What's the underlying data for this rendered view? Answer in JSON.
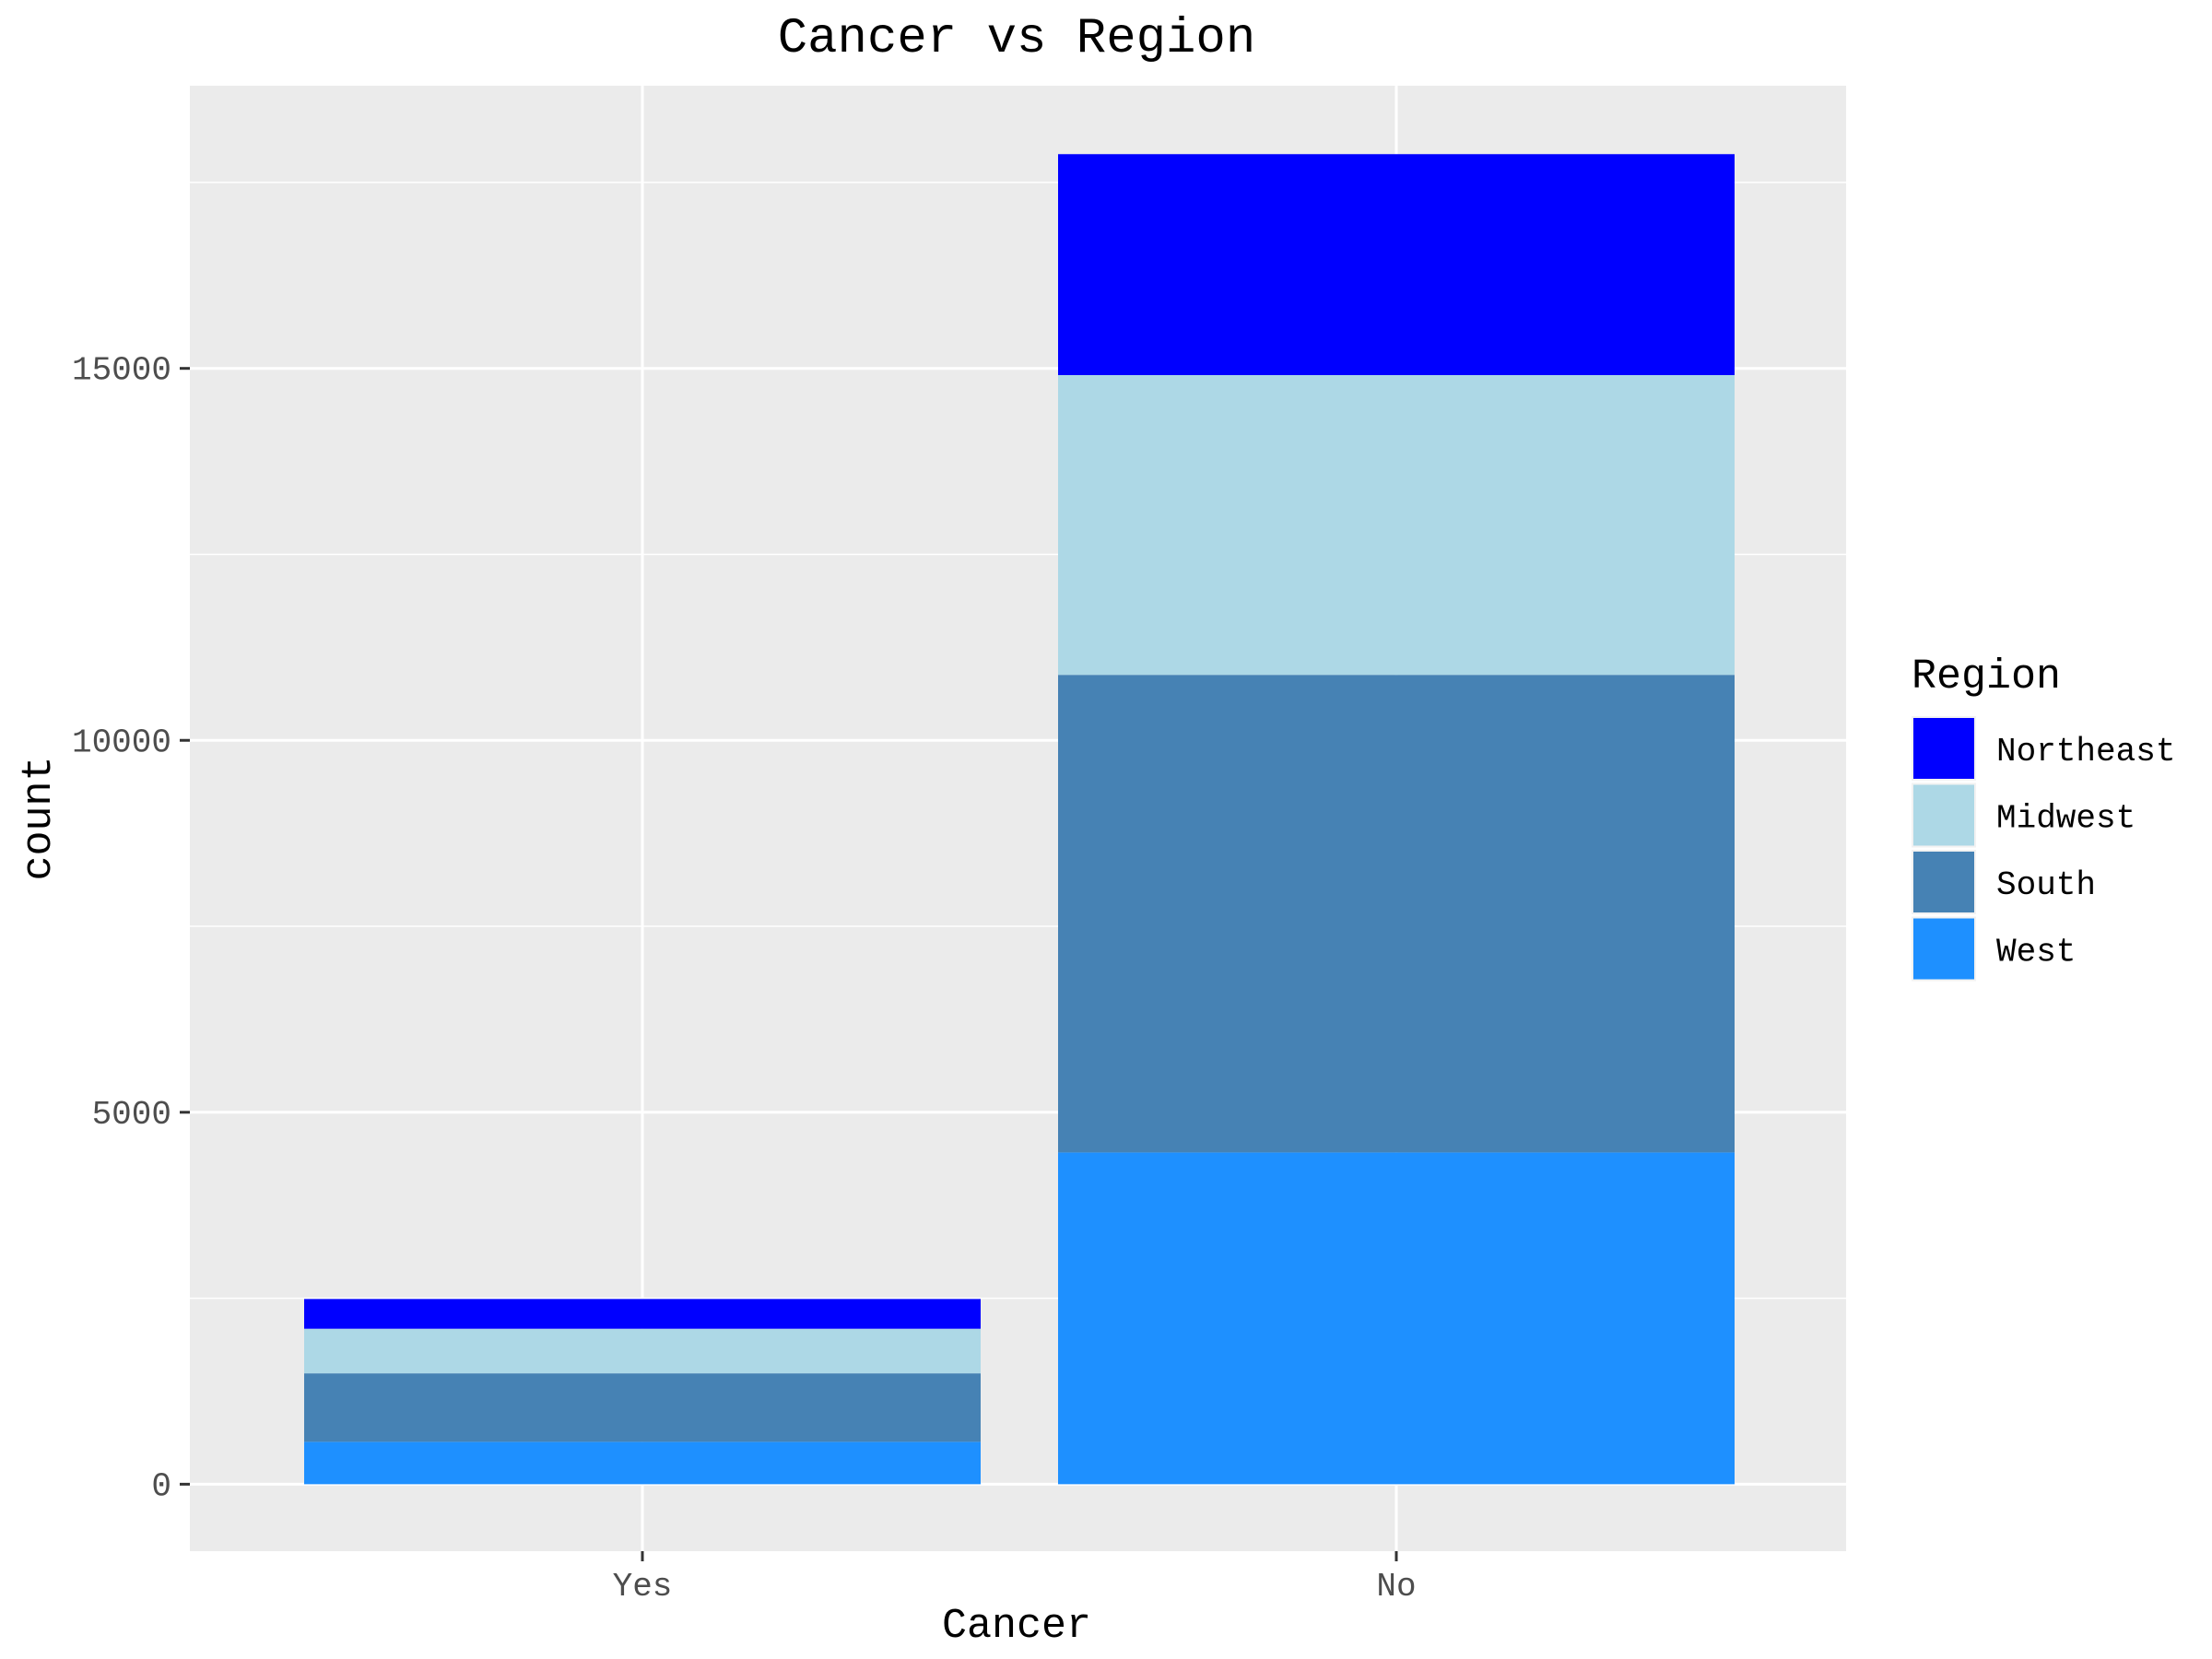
{
  "chart_data": {
    "type": "bar",
    "stacked": true,
    "title": "Cancer vs Region",
    "xlabel": "Cancer",
    "ylabel": "count",
    "categories": [
      "Yes",
      "No"
    ],
    "series": [
      {
        "name": "West",
        "color": "#1E90FF",
        "values": [
          570,
          4460
        ]
      },
      {
        "name": "South",
        "color": "#4682B4",
        "values": [
          920,
          6420
        ]
      },
      {
        "name": "Midwest",
        "color": "#ADD8E6",
        "values": [
          600,
          4030
        ]
      },
      {
        "name": "Northeast",
        "color": "#0000FF",
        "values": [
          400,
          2970
        ]
      }
    ],
    "ylim": [
      -900,
      18800
    ],
    "yticks": [
      0,
      5000,
      10000,
      15000
    ],
    "ytick_labels": [
      "0",
      "5000",
      "10000",
      "15000"
    ],
    "grid": true,
    "legend": {
      "title": "Region",
      "position": "right",
      "entries": [
        "Northeast",
        "Midwest",
        "South",
        "West"
      ]
    },
    "colors": {
      "panel_background": "#EBEBEB",
      "grid": "#FFFFFF",
      "tick_text": "#4D4D4D"
    }
  }
}
